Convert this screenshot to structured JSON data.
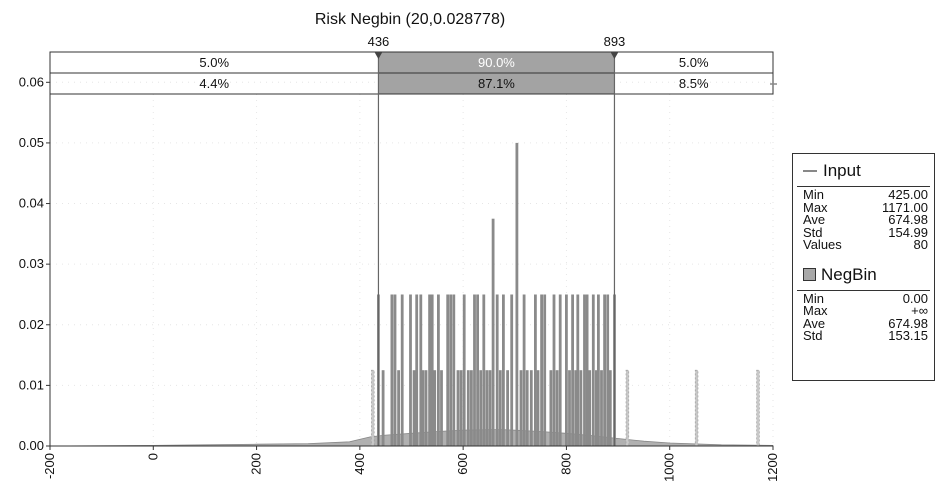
{
  "chart_data": {
    "type": "bar",
    "title": "Risk Negbin (20,0.028778)",
    "xlabel": "",
    "ylabel": "",
    "xlim": [
      -200,
      1200
    ],
    "ylim": [
      0,
      0.065
    ],
    "x_ticks": [
      "-200",
      "0",
      "200",
      "400",
      "600",
      "800",
      "1000",
      "1200"
    ],
    "y_ticks": [
      "0.00",
      "0.01",
      "0.02",
      "0.03",
      "0.04",
      "0.05",
      "0.06"
    ],
    "markers": {
      "left": 436,
      "right": 893,
      "left_label": "436",
      "right_label": "893"
    },
    "band_top": {
      "left": "5.0%",
      "mid": "90.0%",
      "right": "5.0%"
    },
    "band_bottom": {
      "left": "4.4%",
      "mid": "87.1%",
      "right": "8.5%"
    },
    "series": [
      {
        "name": "Input",
        "type": "bar",
        "x": [
          425,
          436,
          445,
          462,
          468,
          475,
          482,
          498,
          505,
          510,
          518,
          522,
          528,
          535,
          540,
          545,
          552,
          558,
          570,
          576,
          582,
          590,
          596,
          602,
          610,
          616,
          622,
          628,
          634,
          640,
          646,
          652,
          658,
          666,
          672,
          678,
          686,
          694,
          704,
          712,
          718,
          724,
          732,
          740,
          745,
          752,
          758,
          770,
          776,
          782,
          788,
          800,
          806,
          812,
          818,
          822,
          828,
          835,
          840,
          845,
          852,
          858,
          862,
          868,
          874,
          880,
          885,
          893,
          918,
          1052,
          1171
        ],
        "values": [
          0.0125,
          0.025,
          0.0125,
          0.025,
          0.025,
          0.0125,
          0.025,
          0.025,
          0.0125,
          0.025,
          0.025,
          0.0125,
          0.0125,
          0.025,
          0.025,
          0.0125,
          0.025,
          0.0125,
          0.025,
          0.025,
          0.025,
          0.0125,
          0.0125,
          0.025,
          0.0125,
          0.0125,
          0.025,
          0.025,
          0.0125,
          0.025,
          0.0125,
          0.0125,
          0.0375,
          0.025,
          0.0125,
          0.025,
          0.0125,
          0.025,
          0.05,
          0.0125,
          0.025,
          0.0125,
          0.0125,
          0.025,
          0.0125,
          0.025,
          0.025,
          0.0125,
          0.025,
          0.0125,
          0.025,
          0.025,
          0.0125,
          0.025,
          0.0125,
          0.025,
          0.0125,
          0.025,
          0.025,
          0.0125,
          0.025,
          0.0125,
          0.025,
          0.0125,
          0.025,
          0.025,
          0.0125,
          0.025,
          0.0125,
          0.0125,
          0.0125
        ]
      },
      {
        "name": "NegBin",
        "type": "area",
        "x": [
          -200,
          0,
          100,
          200,
          300,
          380,
          420,
          450,
          500,
          550,
          600,
          650,
          675,
          700,
          750,
          800,
          850,
          893,
          950,
          1000,
          1100,
          1200
        ],
        "values": [
          0,
          0.0001,
          0.0002,
          0.0003,
          0.0004,
          0.0007,
          0.0015,
          0.0018,
          0.0021,
          0.0024,
          0.0026,
          0.0027,
          0.0027,
          0.0026,
          0.0024,
          0.0021,
          0.0017,
          0.0013,
          0.0008,
          0.0005,
          0.0002,
          0.0001
        ]
      }
    ]
  },
  "legend": {
    "input": {
      "title": "Input",
      "stats": [
        {
          "label": "Min",
          "value": "425.00"
        },
        {
          "label": "Max",
          "value": "1171.00"
        },
        {
          "label": "Ave",
          "value": "674.98"
        },
        {
          "label": "Std",
          "value": "154.99"
        },
        {
          "label": "Values",
          "value": "80"
        }
      ]
    },
    "negbin": {
      "title": "NegBin",
      "stats": [
        {
          "label": "Min",
          "value": "0.00"
        },
        {
          "label": "Max",
          "value": "+∞"
        },
        {
          "label": "Ave",
          "value": "674.98"
        },
        {
          "label": "Std",
          "value": "153.15"
        }
      ]
    }
  }
}
